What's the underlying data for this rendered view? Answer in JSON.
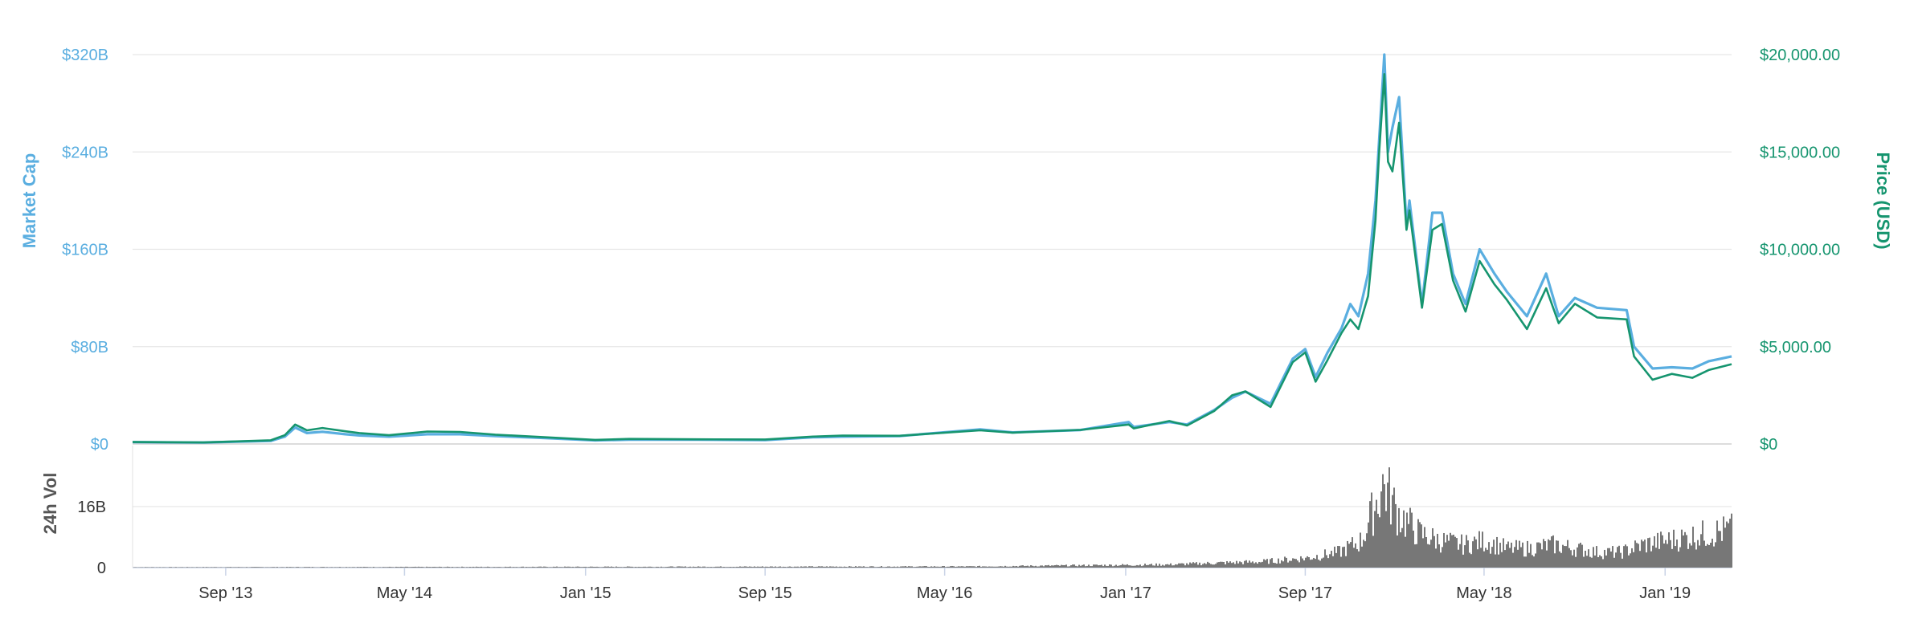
{
  "chart_data": {
    "type": "line",
    "x_tick_labels": [
      "Sep '13",
      "May '14",
      "Jan '15",
      "Sep '15",
      "May '16",
      "Jan '17",
      "Sep '17",
      "May '18",
      "Jan '19"
    ],
    "x_range": [
      "2013-04-28",
      "2019-04-01"
    ],
    "left_axis": {
      "title": "Market Cap",
      "range": [
        0,
        320
      ],
      "ticks": [
        0,
        80,
        160,
        240,
        320
      ],
      "tick_labels": [
        "$0",
        "$80B",
        "$160B",
        "$240B",
        "$320B"
      ]
    },
    "right_axis": {
      "title": "Price (USD)",
      "range": [
        0,
        20000
      ],
      "ticks": [
        0,
        5000,
        10000,
        15000,
        20000
      ],
      "tick_labels": [
        "$0",
        "$5,000.00",
        "$10,000.00",
        "$15,000.00",
        "$20,000.00"
      ]
    },
    "volume_axis": {
      "title": "24h Vol",
      "range": [
        0,
        32
      ],
      "ticks": [
        0,
        16
      ],
      "tick_labels": [
        "0",
        "16B"
      ]
    },
    "grid": true,
    "colors": {
      "market_cap": "#5aaee0",
      "price": "#16956f",
      "volume": "#777777",
      "grid": "#e6e6e6"
    },
    "series": [
      {
        "axis": "left",
        "x": [
          "2013-04-28",
          "2013-08-01",
          "2013-11-01",
          "2013-11-20",
          "2013-12-04",
          "2013-12-20",
          "2014-01-10",
          "2014-02-10",
          "2014-03-01",
          "2014-04-10",
          "2014-06-01",
          "2014-07-15",
          "2014-09-01",
          "2014-11-01",
          "2015-01-14",
          "2015-03-01",
          "2015-06-01",
          "2015-09-01",
          "2015-11-05",
          "2015-12-15",
          "2016-03-01",
          "2016-06-18",
          "2016-08-01",
          "2016-11-01",
          "2017-01-05",
          "2017-01-12",
          "2017-03-01",
          "2017-03-25",
          "2017-05-01",
          "2017-05-25",
          "2017-06-12",
          "2017-07-16",
          "2017-08-15",
          "2017-09-01",
          "2017-09-15",
          "2017-10-01",
          "2017-10-20",
          "2017-11-01",
          "2017-11-12",
          "2017-11-25",
          "2017-12-05",
          "2017-12-10",
          "2017-12-17",
          "2017-12-22",
          "2017-12-28",
          "2018-01-06",
          "2018-01-16",
          "2018-01-20",
          "2018-02-06",
          "2018-02-20",
          "2018-03-05",
          "2018-03-20",
          "2018-04-06",
          "2018-04-25",
          "2018-05-15",
          "2018-06-01",
          "2018-06-28",
          "2018-07-24",
          "2018-08-10",
          "2018-09-01",
          "2018-10-01",
          "2018-11-10",
          "2018-11-20",
          "2018-12-15",
          "2019-01-10",
          "2019-02-07",
          "2019-03-01",
          "2019-04-01"
        ],
        "values": [
          1.5,
          1.2,
          2.5,
          6.0,
          13.5,
          9.0,
          10.0,
          8.0,
          7.0,
          6.0,
          8.0,
          8.0,
          6.5,
          5.0,
          3.0,
          3.5,
          3.5,
          3.2,
          5.5,
          6.0,
          6.5,
          12.0,
          9.5,
          11.5,
          18.0,
          14.0,
          18.0,
          16.0,
          28.0,
          38.0,
          43.0,
          33.0,
          70.0,
          78.0,
          55.0,
          75.0,
          95.0,
          115.0,
          105.0,
          140.0,
          200.0,
          250.0,
          320.0,
          240.0,
          260.0,
          285.0,
          180.0,
          200.0,
          115.0,
          190.0,
          190.0,
          140.0,
          115.0,
          160.0,
          140.0,
          125.0,
          105.0,
          140.0,
          105.0,
          120.0,
          112.0,
          110.0,
          80.0,
          62.0,
          63.0,
          62.0,
          68.0,
          72.0
        ]
      },
      {
        "axis": "right",
        "x": [
          "2013-04-28",
          "2013-08-01",
          "2013-11-01",
          "2013-11-20",
          "2013-12-04",
          "2013-12-20",
          "2014-01-10",
          "2014-02-10",
          "2014-03-01",
          "2014-04-10",
          "2014-06-01",
          "2014-07-15",
          "2014-09-01",
          "2014-11-01",
          "2015-01-14",
          "2015-03-01",
          "2015-06-01",
          "2015-09-01",
          "2015-11-05",
          "2015-12-15",
          "2016-03-01",
          "2016-06-18",
          "2016-08-01",
          "2016-11-01",
          "2017-01-05",
          "2017-01-12",
          "2017-03-01",
          "2017-03-25",
          "2017-05-01",
          "2017-05-25",
          "2017-06-12",
          "2017-07-16",
          "2017-08-15",
          "2017-09-01",
          "2017-09-15",
          "2017-10-01",
          "2017-10-20",
          "2017-11-01",
          "2017-11-12",
          "2017-11-25",
          "2017-12-05",
          "2017-12-10",
          "2017-12-17",
          "2017-12-22",
          "2017-12-28",
          "2018-01-06",
          "2018-01-16",
          "2018-01-20",
          "2018-02-06",
          "2018-02-20",
          "2018-03-05",
          "2018-03-20",
          "2018-04-06",
          "2018-04-25",
          "2018-05-15",
          "2018-06-01",
          "2018-06-28",
          "2018-07-24",
          "2018-08-10",
          "2018-09-01",
          "2018-10-01",
          "2018-11-10",
          "2018-11-20",
          "2018-12-15",
          "2019-01-10",
          "2019-02-07",
          "2019-03-01",
          "2019-04-01"
        ],
        "values": [
          100,
          80,
          190,
          450,
          1000,
          700,
          820,
          650,
          560,
          450,
          640,
          620,
          480,
          360,
          210,
          260,
          240,
          230,
          380,
          430,
          420,
          700,
          580,
          720,
          1000,
          800,
          1180,
          950,
          1700,
          2500,
          2700,
          1900,
          4200,
          4700,
          3200,
          4300,
          5700,
          6400,
          5900,
          7600,
          11500,
          15000,
          19000,
          14500,
          14000,
          16500,
          11000,
          12000,
          7000,
          11000,
          11300,
          8400,
          6800,
          9400,
          8200,
          7400,
          5900,
          8000,
          6200,
          7200,
          6500,
          6400,
          4500,
          3300,
          3600,
          3400,
          3800,
          4100
        ]
      },
      {
        "axis": "volume",
        "type": "bar",
        "x": [
          "2013-04-28",
          "2016-06-01",
          "2017-03-01",
          "2017-05-01",
          "2017-07-01",
          "2017-09-01",
          "2017-10-15",
          "2017-11-15",
          "2017-12-01",
          "2017-12-15",
          "2018-01-01",
          "2018-01-15",
          "2018-02-01",
          "2018-03-01",
          "2018-04-01",
          "2018-05-01",
          "2018-06-01",
          "2018-07-01",
          "2018-08-01",
          "2018-09-01",
          "2018-10-01",
          "2018-11-01",
          "2018-12-01",
          "2019-01-01",
          "2019-02-01",
          "2019-03-01",
          "2019-04-01"
        ],
        "values": [
          0.1,
          0.3,
          0.8,
          1.2,
          1.5,
          2.5,
          4,
          7,
          15,
          22,
          15,
          12,
          9,
          7,
          6,
          7,
          5,
          5,
          6,
          5,
          4,
          4,
          6,
          7,
          8,
          9,
          10
        ]
      }
    ]
  }
}
